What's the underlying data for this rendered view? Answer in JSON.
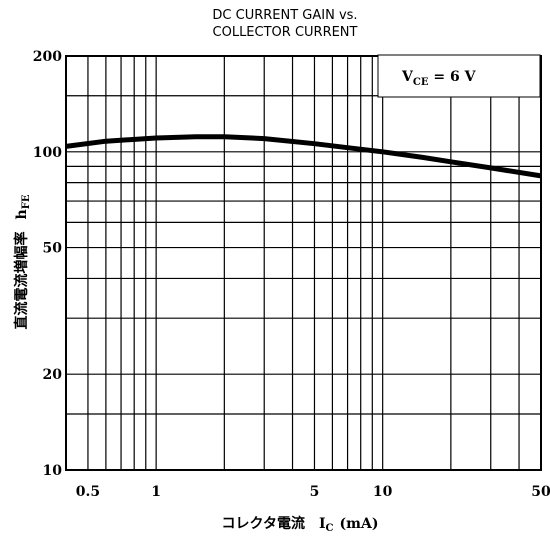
{
  "chart_data": {
    "type": "line",
    "title_line1": "DC CURRENT GAIN vs.",
    "title_line2": "COLLECTOR CURRENT",
    "xlabel": {
      "jp": "コレクタ電流",
      "sym": "I",
      "sub": "C",
      "unit": "(mA)"
    },
    "ylabel": {
      "jp": "直流電流増幅率",
      "sym": "h",
      "sub": "FE"
    },
    "annotation": {
      "v": "V",
      "sub": "CE",
      "eq": " = 6 V"
    },
    "xscale": "log",
    "yscale": "log",
    "xlim": [
      0.4,
      50
    ],
    "ylim": [
      10,
      200
    ],
    "x_ticks": [
      {
        "v": 0.5,
        "label": "0.5"
      },
      {
        "v": 1,
        "label": "1"
      },
      {
        "v": 5,
        "label": "5"
      },
      {
        "v": 10,
        "label": "10"
      },
      {
        "v": 50,
        "label": "50"
      }
    ],
    "y_ticks": [
      {
        "v": 10,
        "label": "10"
      },
      {
        "v": 20,
        "label": "20"
      },
      {
        "v": 50,
        "label": "50"
      },
      {
        "v": 100,
        "label": "100"
      },
      {
        "v": 200,
        "label": "200"
      }
    ],
    "x_grid": [
      0.5,
      0.6,
      0.7,
      0.8,
      0.9,
      1,
      2,
      3,
      4,
      5,
      6,
      7,
      8,
      9,
      10,
      20,
      30,
      40,
      50
    ],
    "y_grid": [
      10,
      15,
      20,
      30,
      40,
      50,
      60,
      70,
      80,
      90,
      100,
      150,
      200
    ],
    "grid": true,
    "series": [
      {
        "color": "#000000",
        "x": [
          0.4,
          0.6,
          1,
          1.5,
          2,
          3,
          5,
          7,
          10,
          15,
          20,
          30,
          50
        ],
        "y": [
          104,
          108,
          110.5,
          111.5,
          111.5,
          110,
          106,
          103,
          100,
          96,
          93,
          89,
          84
        ]
      }
    ]
  }
}
